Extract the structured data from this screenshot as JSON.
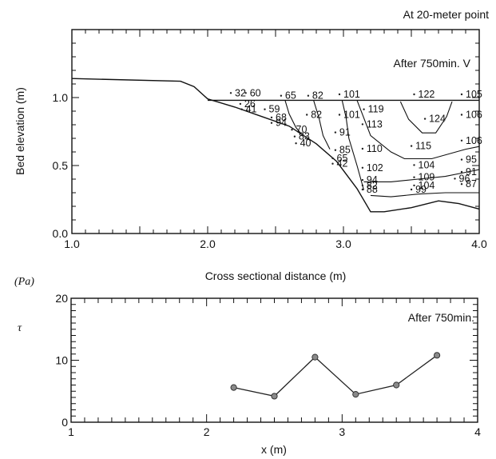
{
  "chart_data": [
    {
      "type": "line",
      "title": "At 20-meter point",
      "annotation": "After 750min. V",
      "xlabel": "Cross sectional distance (m)",
      "ylabel": "Bed elevation (m)",
      "xlim": [
        1.0,
        4.0
      ],
      "ylim": [
        0.0,
        1.5
      ],
      "xticks": [
        "1.0",
        "2.0",
        "3.0",
        "4.0"
      ],
      "yticks": [
        "0.0",
        "0.5",
        "1.0"
      ],
      "water_level": 0.98,
      "bed_profile": {
        "x": [
          1.0,
          1.8,
          1.9,
          2.0,
          2.2,
          2.4,
          2.6,
          2.8,
          2.95,
          3.1,
          3.2,
          3.3,
          3.5,
          3.7,
          3.85,
          4.0
        ],
        "y": [
          1.14,
          1.12,
          1.08,
          0.99,
          0.93,
          0.86,
          0.79,
          0.66,
          0.53,
          0.33,
          0.16,
          0.16,
          0.19,
          0.24,
          0.22,
          0.18
        ]
      },
      "contours": [
        {
          "label": "65",
          "x": [
            2.57,
            2.6,
            2.65,
            2.7
          ],
          "y": [
            0.98,
            0.88,
            0.78,
            0.72
          ]
        },
        {
          "label": "82",
          "x": [
            2.78,
            2.82,
            2.85,
            2.9
          ],
          "y": [
            0.98,
            0.85,
            0.72,
            0.62
          ]
        },
        {
          "label": "101",
          "x": [
            2.99,
            3.02,
            3.04,
            3.1,
            3.15
          ],
          "y": [
            0.98,
            0.85,
            0.7,
            0.5,
            0.32
          ]
        },
        {
          "label": "110",
          "x": [
            3.1,
            3.2,
            3.35,
            3.45,
            3.65,
            3.9,
            4.0
          ],
          "y": [
            0.98,
            0.72,
            0.6,
            0.55,
            0.55,
            0.62,
            0.64
          ]
        },
        {
          "label": "124",
          "x": [
            3.42,
            3.48,
            3.58,
            3.68,
            3.76,
            3.8
          ],
          "y": [
            0.97,
            0.84,
            0.74,
            0.74,
            0.86,
            0.97
          ]
        },
        {
          "label": "95",
          "x": [
            3.15,
            3.35,
            3.55,
            3.75,
            3.9,
            4.0
          ],
          "y": [
            0.38,
            0.38,
            0.4,
            0.42,
            0.45,
            0.47
          ]
        },
        {
          "label": "87",
          "x": [
            3.2,
            3.35,
            3.55,
            3.75,
            4.0
          ],
          "y": [
            0.28,
            0.27,
            0.29,
            0.3,
            0.3
          ]
        }
      ],
      "contour_labels": [
        {
          "text": "32",
          "x": 2.2,
          "y": 1.01
        },
        {
          "text": "60",
          "x": 2.31,
          "y": 1.01
        },
        {
          "text": "65",
          "x": 2.57,
          "y": 0.99
        },
        {
          "text": "82",
          "x": 2.77,
          "y": 0.99
        },
        {
          "text": "101",
          "x": 3.0,
          "y": 1.0
        },
        {
          "text": "122",
          "x": 3.55,
          "y": 1.0
        },
        {
          "text": "105",
          "x": 3.9,
          "y": 1.0
        },
        {
          "text": "26",
          "x": 2.27,
          "y": 0.93
        },
        {
          "text": "41",
          "x": 2.28,
          "y": 0.89
        },
        {
          "text": "59",
          "x": 2.45,
          "y": 0.89
        },
        {
          "text": "119",
          "x": 3.18,
          "y": 0.89
        },
        {
          "text": "101",
          "x": 3.0,
          "y": 0.85
        },
        {
          "text": "68",
          "x": 2.5,
          "y": 0.83
        },
        {
          "text": "82",
          "x": 2.76,
          "y": 0.85
        },
        {
          "text": "113",
          "x": 3.17,
          "y": 0.78
        },
        {
          "text": "124",
          "x": 3.63,
          "y": 0.82
        },
        {
          "text": "106",
          "x": 3.9,
          "y": 0.85
        },
        {
          "text": "94",
          "x": 2.5,
          "y": 0.79
        },
        {
          "text": "70",
          "x": 2.65,
          "y": 0.74
        },
        {
          "text": "91",
          "x": 2.97,
          "y": 0.72
        },
        {
          "text": "83",
          "x": 2.67,
          "y": 0.69
        },
        {
          "text": "106",
          "x": 3.9,
          "y": 0.66
        },
        {
          "text": "40",
          "x": 2.68,
          "y": 0.64
        },
        {
          "text": "110",
          "x": 3.17,
          "y": 0.6
        },
        {
          "text": "115",
          "x": 3.53,
          "y": 0.62
        },
        {
          "text": "85",
          "x": 2.97,
          "y": 0.59
        },
        {
          "text": "65",
          "x": 2.95,
          "y": 0.53
        },
        {
          "text": "42",
          "x": 2.95,
          "y": 0.49
        },
        {
          "text": "95",
          "x": 3.9,
          "y": 0.52
        },
        {
          "text": "102",
          "x": 3.17,
          "y": 0.46
        },
        {
          "text": "104",
          "x": 3.55,
          "y": 0.48
        },
        {
          "text": "91",
          "x": 3.9,
          "y": 0.43
        },
        {
          "text": "109",
          "x": 3.55,
          "y": 0.39
        },
        {
          "text": "94",
          "x": 3.17,
          "y": 0.37
        },
        {
          "text": "96",
          "x": 3.85,
          "y": 0.38
        },
        {
          "text": "82",
          "x": 3.17,
          "y": 0.33
        },
        {
          "text": "104",
          "x": 3.55,
          "y": 0.33
        },
        {
          "text": "87",
          "x": 3.9,
          "y": 0.34
        },
        {
          "text": "88",
          "x": 3.17,
          "y": 0.3
        },
        {
          "text": "99",
          "x": 3.53,
          "y": 0.3
        }
      ]
    },
    {
      "type": "line",
      "annotation": "After 750min.",
      "unit_label": "(Pa)",
      "ylabel": "τ",
      "xlabel": "x (m)",
      "xlim": [
        1,
        4
      ],
      "ylim": [
        0,
        20
      ],
      "xticks": [
        "1",
        "2",
        "3",
        "4"
      ],
      "yticks": [
        "0",
        "10",
        "20"
      ],
      "x": [
        2.2,
        2.5,
        2.8,
        3.1,
        3.4,
        3.7
      ],
      "y": [
        5.6,
        4.2,
        10.5,
        4.5,
        6.0,
        10.8
      ]
    }
  ]
}
